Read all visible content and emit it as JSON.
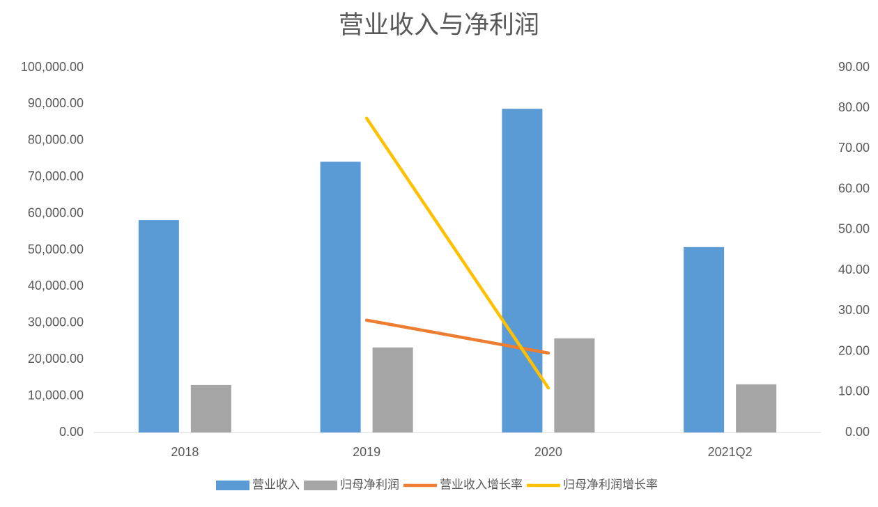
{
  "chart_data": {
    "type": "combo",
    "title": "营业收入与净利润",
    "categories": [
      "2018",
      "2019",
      "2020",
      "2021Q2"
    ],
    "series": [
      {
        "name": "营业收入",
        "type": "bar",
        "color": "#5b9bd5",
        "values": [
          58200,
          74200,
          88700,
          50800
        ]
      },
      {
        "name": "归母净利润",
        "type": "bar",
        "color": "#a5a5a5",
        "values": [
          13000,
          23300,
          25800,
          13200
        ]
      },
      {
        "name": "营业收入增长率",
        "type": "line",
        "axis": "y2",
        "color": "#ed7d31",
        "values": [
          null,
          27.7,
          19.6,
          null
        ]
      },
      {
        "name": "归母净利润增长率",
        "type": "line",
        "axis": "y2",
        "color": "#ffc000",
        "values": [
          null,
          77.5,
          11.0,
          null
        ]
      }
    ],
    "ylim": [
      0,
      100000
    ],
    "yticks": [
      {
        "value": 0,
        "label": "0.00"
      },
      {
        "value": 10000,
        "label": "10,000.00"
      },
      {
        "value": 20000,
        "label": "20,000.00"
      },
      {
        "value": 30000,
        "label": "30,000.00"
      },
      {
        "value": 40000,
        "label": "40,000.00"
      },
      {
        "value": 50000,
        "label": "50,000.00"
      },
      {
        "value": 60000,
        "label": "60,000.00"
      },
      {
        "value": 70000,
        "label": "70,000.00"
      },
      {
        "value": 80000,
        "label": "80,000.00"
      },
      {
        "value": 90000,
        "label": "90,000.00"
      },
      {
        "value": 100000,
        "label": "100,000.00"
      }
    ],
    "y2lim": [
      0,
      90
    ],
    "y2ticks": [
      {
        "value": 0,
        "label": "0.00"
      },
      {
        "value": 10,
        "label": "10.00"
      },
      {
        "value": 20,
        "label": "20.00"
      },
      {
        "value": 30,
        "label": "30.00"
      },
      {
        "value": 40,
        "label": "40.00"
      },
      {
        "value": 50,
        "label": "50.00"
      },
      {
        "value": 60,
        "label": "60.00"
      },
      {
        "value": 70,
        "label": "70.00"
      },
      {
        "value": 80,
        "label": "80.00"
      },
      {
        "value": 90,
        "label": "90.00"
      }
    ],
    "grid": false,
    "legend": "bottom"
  }
}
